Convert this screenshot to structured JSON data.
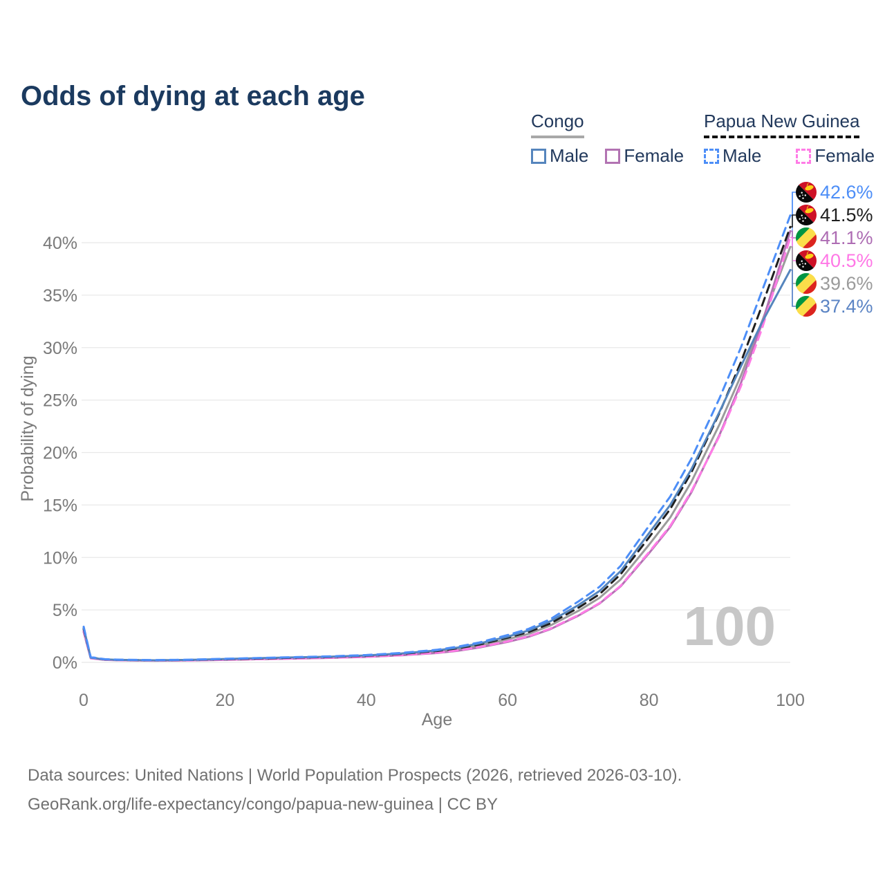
{
  "title": "Odds of dying at each age",
  "legend": {
    "congo": {
      "title": "Congo",
      "male_label": "Male",
      "female_label": "Female"
    },
    "png": {
      "title": "Papua New Guinea",
      "male_label": "Male",
      "female_label": "Female"
    }
  },
  "watermark_age": "100",
  "footer": {
    "line1": "Data sources: United Nations | World Population Prospects (2026, retrieved 2026-03-10).",
    "line2": "GeoRank.org/life-expectancy/congo/papua-new-guinea | CC BY"
  },
  "colors": {
    "title_text": "#1b3a5f",
    "legend_text": "#22395c",
    "tick_text": "#7a7a7a",
    "gridline": "#e8e8e8",
    "footer_text": "#707070",
    "watermark": "#c7c7c7",
    "congo_male": "#5585bd",
    "congo_female": "#b273b2",
    "congo_both": "#9b9b9b",
    "png_male": "#4d8ef7",
    "png_female": "#ff7ce6",
    "png_both": "#1f1f1f"
  },
  "end_labels": [
    {
      "series": "png_male",
      "flag": "png",
      "value": "42.6%",
      "color": "#4d8ef7"
    },
    {
      "series": "png_both",
      "flag": "png",
      "value": "41.5%",
      "color": "#1f1f1f"
    },
    {
      "series": "congo_female",
      "flag": "congo",
      "value": "41.1%",
      "color": "#ad6cb3"
    },
    {
      "series": "png_female",
      "flag": "png",
      "value": "40.5%",
      "color": "#ff77e6"
    },
    {
      "series": "congo_both",
      "flag": "congo",
      "value": "39.6%",
      "color": "#9b9b9b"
    },
    {
      "series": "congo_male",
      "flag": "congo",
      "value": "37.4%",
      "color": "#5b84c4"
    }
  ],
  "chart_data": {
    "type": "line",
    "title": "Odds of dying at each age",
    "xlabel": "Age",
    "ylabel": "Probability of dying",
    "xlim": [
      0,
      100
    ],
    "ylim": [
      0,
      40
    ],
    "x_ticks": [
      0,
      20,
      40,
      60,
      80,
      100
    ],
    "y_ticks": [
      {
        "value": 0,
        "label": "0%"
      },
      {
        "value": 5,
        "label": "5%"
      },
      {
        "value": 10,
        "label": "10%"
      },
      {
        "value": 15,
        "label": "15%"
      },
      {
        "value": 20,
        "label": "20%"
      },
      {
        "value": 25,
        "label": "25%"
      },
      {
        "value": 30,
        "label": "30%"
      },
      {
        "value": 35,
        "label": "35%"
      },
      {
        "value": 40,
        "label": "40%"
      }
    ],
    "grid": "horizontal",
    "legend_position": "top-right",
    "ages": [
      0,
      1,
      3,
      5,
      10,
      15,
      20,
      25,
      30,
      35,
      40,
      45,
      50,
      53,
      56,
      60,
      63,
      66,
      70,
      73,
      76,
      80,
      83,
      86,
      90,
      93,
      96,
      100
    ],
    "series": [
      {
        "id": "congo_both",
        "name": "Congo — Both sexes",
        "color": "#9b9b9b",
        "dash": false,
        "values": [
          3.1,
          0.42,
          0.26,
          0.22,
          0.18,
          0.21,
          0.28,
          0.35,
          0.42,
          0.49,
          0.59,
          0.76,
          1.01,
          1.26,
          1.6,
          2.2,
          2.72,
          3.5,
          4.9,
          6.15,
          7.9,
          11.2,
          13.8,
          17.2,
          22.7,
          27.3,
          32.5,
          39.6
        ]
      },
      {
        "id": "congo_female",
        "name": "Congo — Female",
        "color": "#b273b2",
        "dash": false,
        "values": [
          2.9,
          0.39,
          0.24,
          0.2,
          0.16,
          0.18,
          0.24,
          0.3,
          0.36,
          0.43,
          0.52,
          0.67,
          0.89,
          1.11,
          1.42,
          1.95,
          2.45,
          3.15,
          4.45,
          5.6,
          7.25,
          10.4,
          12.9,
          16.2,
          21.7,
          26.6,
          32.3,
          41.1
        ]
      },
      {
        "id": "png_female",
        "name": "Papua New Guinea — Female",
        "color": "#ff7ce6",
        "dash": true,
        "values": [
          3.0,
          0.4,
          0.25,
          0.21,
          0.17,
          0.19,
          0.25,
          0.31,
          0.37,
          0.44,
          0.53,
          0.69,
          0.92,
          1.14,
          1.46,
          2.0,
          2.5,
          3.2,
          4.5,
          5.65,
          7.3,
          10.5,
          13.0,
          16.3,
          21.6,
          26.3,
          31.8,
          40.5
        ]
      },
      {
        "id": "png_both",
        "name": "Papua New Guinea — Both sexes",
        "color": "#1f1f1f",
        "dash": true,
        "values": [
          3.2,
          0.47,
          0.28,
          0.24,
          0.2,
          0.23,
          0.3,
          0.37,
          0.45,
          0.52,
          0.63,
          0.81,
          1.08,
          1.35,
          1.7,
          2.35,
          2.9,
          3.7,
          5.2,
          6.5,
          8.4,
          11.9,
          14.6,
          18.1,
          23.8,
          28.6,
          34.0,
          41.5
        ]
      },
      {
        "id": "congo_male",
        "name": "Congo — Male",
        "color": "#5585bd",
        "dash": false,
        "values": [
          3.3,
          0.45,
          0.28,
          0.24,
          0.2,
          0.24,
          0.32,
          0.4,
          0.48,
          0.55,
          0.66,
          0.85,
          1.14,
          1.42,
          1.8,
          2.45,
          3.05,
          3.9,
          5.45,
          6.8,
          8.7,
          12.3,
          15.0,
          18.4,
          23.9,
          28.2,
          32.4,
          37.4
        ]
      },
      {
        "id": "png_male",
        "name": "Papua New Guinea — Male",
        "color": "#4d8ef7",
        "dash": true,
        "values": [
          3.4,
          0.5,
          0.3,
          0.26,
          0.22,
          0.26,
          0.34,
          0.42,
          0.5,
          0.58,
          0.7,
          0.9,
          1.2,
          1.5,
          1.9,
          2.6,
          3.2,
          4.1,
          5.8,
          7.2,
          9.2,
          13.0,
          15.8,
          19.4,
          25.2,
          30.0,
          35.4,
          42.6
        ]
      }
    ]
  },
  "flag_colors": {
    "congo": {
      "green": "#009543",
      "yellow": "#fbde4a",
      "red": "#dc241f"
    },
    "png": {
      "red": "#ce1126",
      "black": "#0a0a0a",
      "bird": "#fcd116",
      "stars": "#ffffff"
    }
  }
}
